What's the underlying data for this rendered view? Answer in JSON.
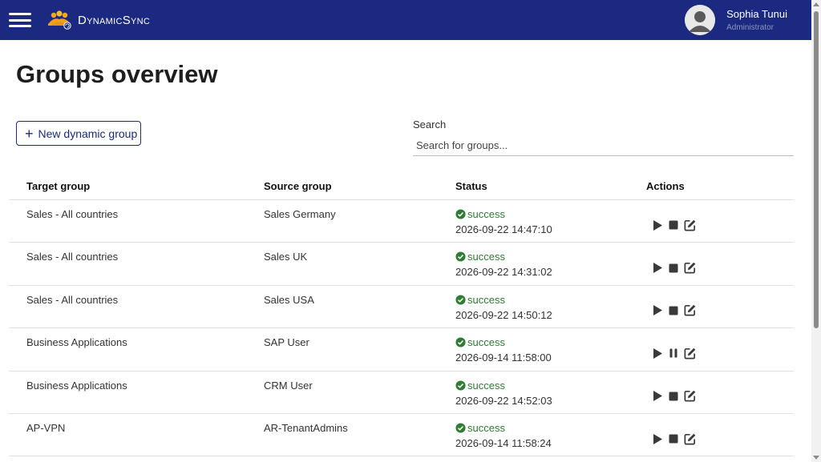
{
  "header": {
    "brand": "DynamicSync",
    "user_name": "Sophia Tunui",
    "user_role": "Administrator"
  },
  "page": {
    "title": "Groups overview",
    "new_button_label": "New dynamic group",
    "search_label": "Search",
    "search_placeholder": "Search for groups...",
    "search_value": ""
  },
  "table": {
    "columns": [
      "Target group",
      "Source group",
      "Status",
      "Actions"
    ],
    "rows": [
      {
        "target": "Sales - All countries",
        "source": "Sales Germany",
        "status": "success",
        "time": "2026-09-22 14:47:10",
        "state": "running"
      },
      {
        "target": "Sales - All countries",
        "source": "Sales UK",
        "status": "success",
        "time": "2026-09-22 14:31:02",
        "state": "running"
      },
      {
        "target": "Sales - All countries",
        "source": "Sales USA",
        "status": "success",
        "time": "2026-09-22 14:50:12",
        "state": "running"
      },
      {
        "target": "Business Applications",
        "source": "SAP User",
        "status": "success",
        "time": "2026-09-14 11:58:00",
        "state": "paused"
      },
      {
        "target": "Business Applications",
        "source": "CRM User",
        "status": "success",
        "time": "2026-09-22 14:52:03",
        "state": "running"
      },
      {
        "target": "AP-VPN",
        "source": "AR-TenantAdmins",
        "status": "success",
        "time": "2026-09-14 11:58:24",
        "state": "running"
      }
    ]
  },
  "icons": {
    "menu": "hamburger-icon",
    "logo": "people-sync-logo",
    "status": "check-circle-icon",
    "play": "play-icon",
    "stop": "stop-icon",
    "pause": "pause-icon",
    "edit": "edit-icon"
  },
  "colors": {
    "header_bg": "#1b2a80",
    "accent": "#1b2a80",
    "success": "#2e7d32",
    "icon": "#3a3a3a"
  }
}
